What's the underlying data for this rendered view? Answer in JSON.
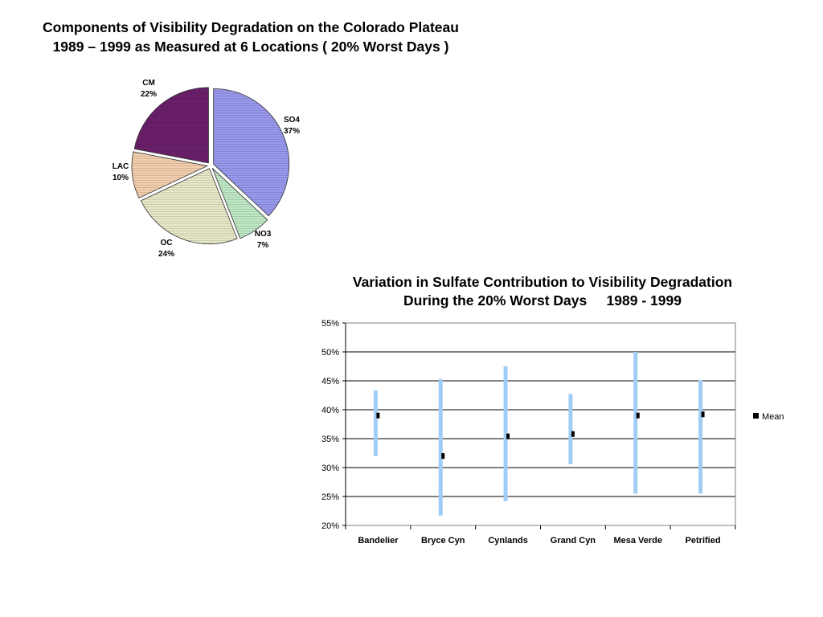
{
  "chart_data": [
    {
      "type": "pie",
      "title_lines": [
        "Components of Visibility Degradation on the Colorado Plateau",
        "1989 – 1999 as Measured at 6 Locations ( 20% Worst Days )"
      ],
      "slices": [
        {
          "name": "SO4",
          "value": 37,
          "label": "37%",
          "color": "#9999ee"
        },
        {
          "name": "NO3",
          "value": 7,
          "label": "7%",
          "color": "#bfe8c4"
        },
        {
          "name": "OC",
          "value": 24,
          "label": "24%",
          "color": "#e8e8c8"
        },
        {
          "name": "LAC",
          "value": 10,
          "label": "10%",
          "color": "#f3cfae"
        },
        {
          "name": "CM",
          "value": 22,
          "label": "22%",
          "color": "#6b1f6b"
        }
      ]
    },
    {
      "type": "range",
      "title_lines": [
        "Variation in Sulfate Contribution to Visibility Degradation",
        "During the 20% Worst Days     1989 - 1999"
      ],
      "categories": [
        "Bandelier",
        "Bryce Cyn",
        "Cynlands",
        "Grand Cyn",
        "Mesa Verde",
        "Petrified"
      ],
      "ylim": [
        20,
        55
      ],
      "yticks": [
        "20%",
        "25%",
        "30%",
        "35%",
        "40%",
        "45%",
        "50%",
        "55%"
      ],
      "grid": true,
      "legend": {
        "label": "Mean",
        "position": "right"
      },
      "ranges": [
        {
          "low": 32.0,
          "high": 43.3
        },
        {
          "low": 21.7,
          "high": 45.3
        },
        {
          "low": 24.2,
          "high": 47.5
        },
        {
          "low": 30.6,
          "high": 42.7
        },
        {
          "low": 25.5,
          "high": 50.0
        },
        {
          "low": 25.5,
          "high": 45.1
        }
      ],
      "series": [
        {
          "name": "Mean",
          "values": [
            39.0,
            32.0,
            35.4,
            35.8,
            39.0,
            39.2
          ]
        }
      ],
      "colors": {
        "range": "#9fcdf5",
        "mean": "#000000",
        "grid": "#000000"
      }
    }
  ]
}
